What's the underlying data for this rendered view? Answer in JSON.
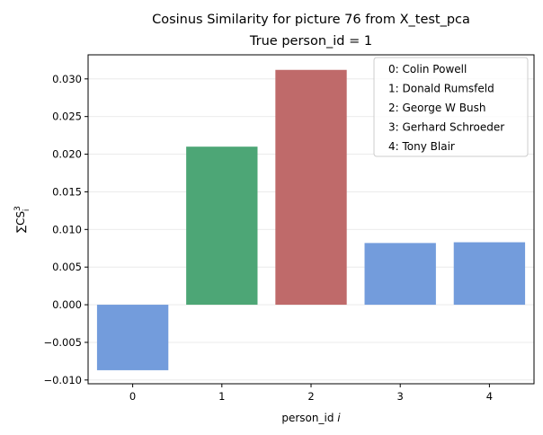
{
  "chart_data": {
    "type": "bar",
    "title": "Cosinus Similarity for picture 76 from X_test_pca",
    "subtitle": "True person_id = 1",
    "xlabel": "person_id",
    "xlabel_var": "i",
    "ylabel": "∑CS",
    "ylabel_sub": "i",
    "ylabel_sup": "3",
    "categories": [
      "0",
      "1",
      "2",
      "3",
      "4"
    ],
    "values": [
      -0.0087,
      0.021,
      0.0312,
      0.0082,
      0.0083
    ],
    "colors": [
      "#739cdc",
      "#4da676",
      "#bf6a6a",
      "#739cdc",
      "#739cdc"
    ],
    "ylim": [
      -0.0105,
      0.0332
    ],
    "yticks": [
      -0.01,
      -0.005,
      0.0,
      0.005,
      0.01,
      0.015,
      0.02,
      0.025,
      0.03
    ],
    "ytick_labels": [
      "−0.010",
      "−0.005",
      "0.000",
      "0.005",
      "0.010",
      "0.015",
      "0.020",
      "0.025",
      "0.030"
    ],
    "grid": "horizontal",
    "legend_position": "top-right",
    "legend": [
      "0: Colin Powell",
      "1: Donald Rumsfeld",
      "2: George W Bush",
      "3: Gerhard Schroeder",
      "4: Tony Blair"
    ]
  }
}
